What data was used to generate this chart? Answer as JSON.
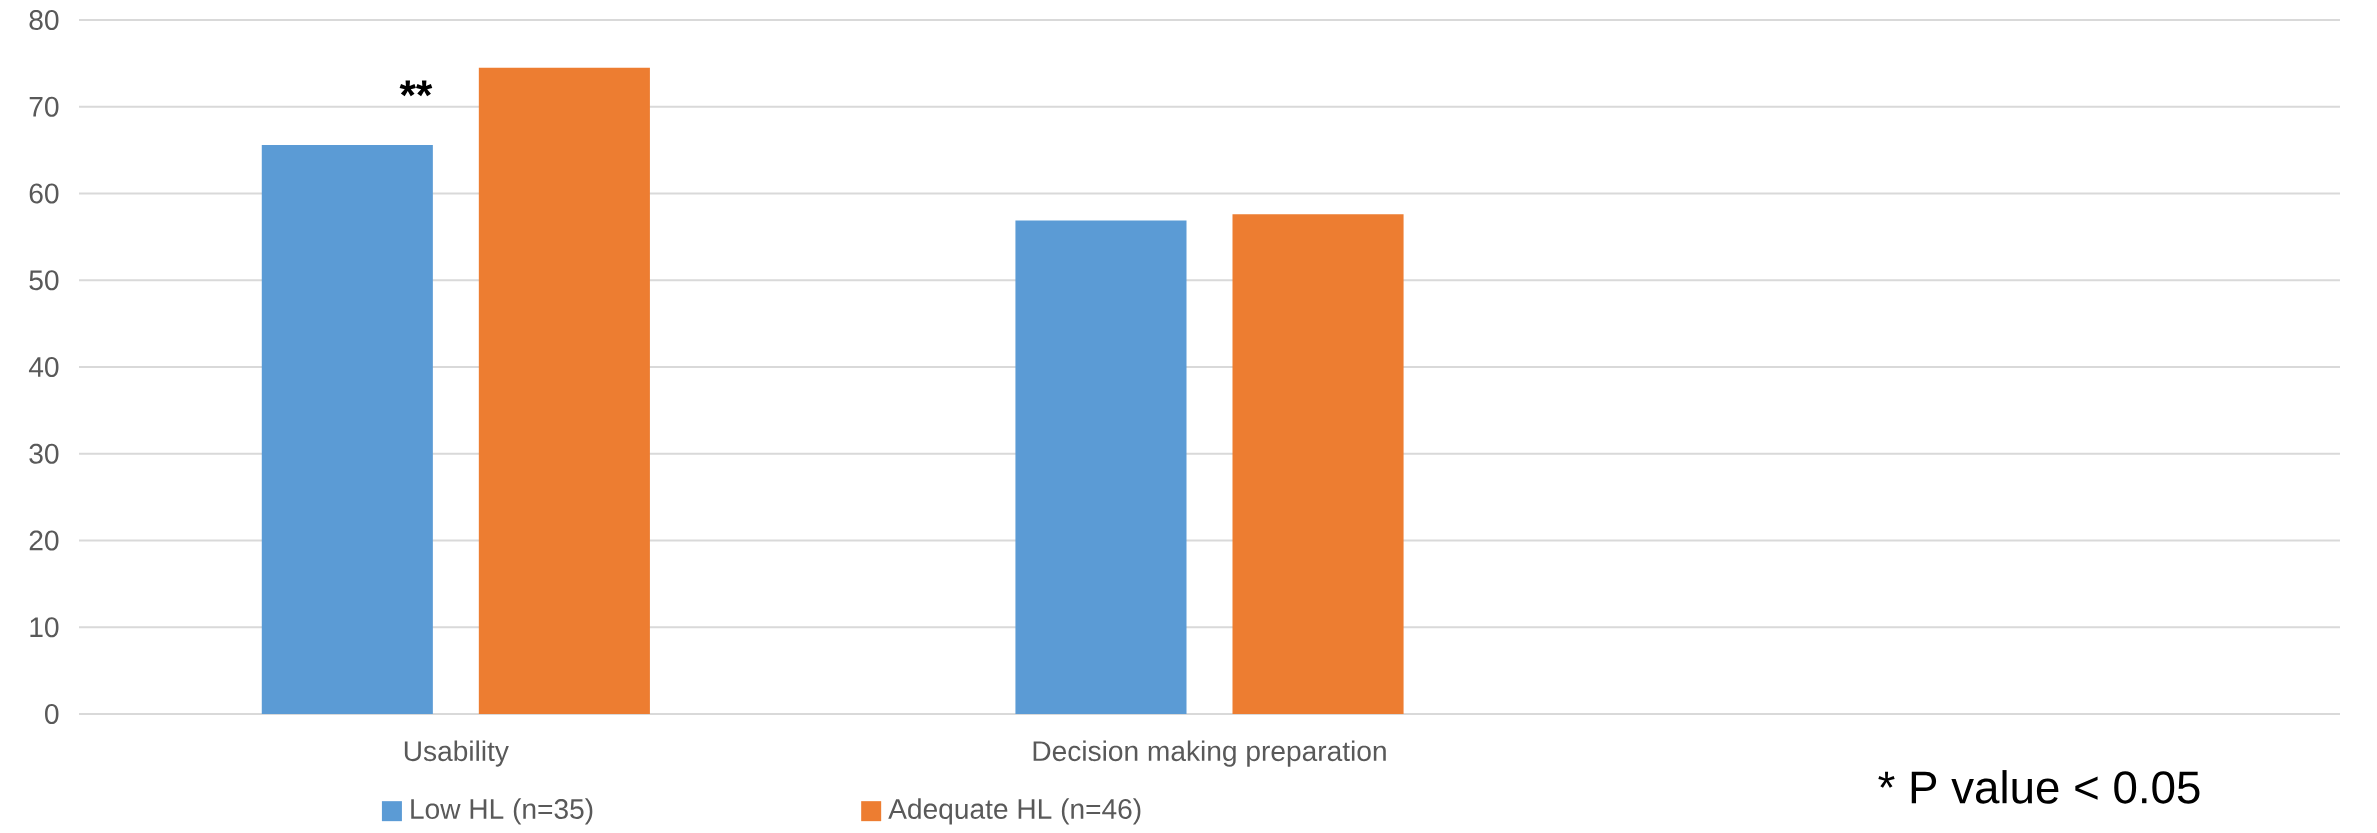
{
  "chart_data": {
    "type": "bar",
    "categories": [
      "Usability",
      "Decision making preparation",
      null
    ],
    "series": [
      {
        "name": "Low HL (n=35)",
        "color": "#5b9bd5",
        "values": [
          65.6,
          56.9,
          null
        ]
      },
      {
        "name": "Adequate HL (n=46)",
        "color": "#ed7d31",
        "values": [
          74.5,
          57.6,
          null
        ]
      }
    ],
    "ylim": [
      0,
      80
    ],
    "yticks": [
      0,
      10,
      20,
      30,
      40,
      50,
      60,
      70,
      80
    ],
    "grid": "y",
    "legend": "bottom",
    "annotations": [
      "**",
      "* P value < 0.05"
    ]
  }
}
